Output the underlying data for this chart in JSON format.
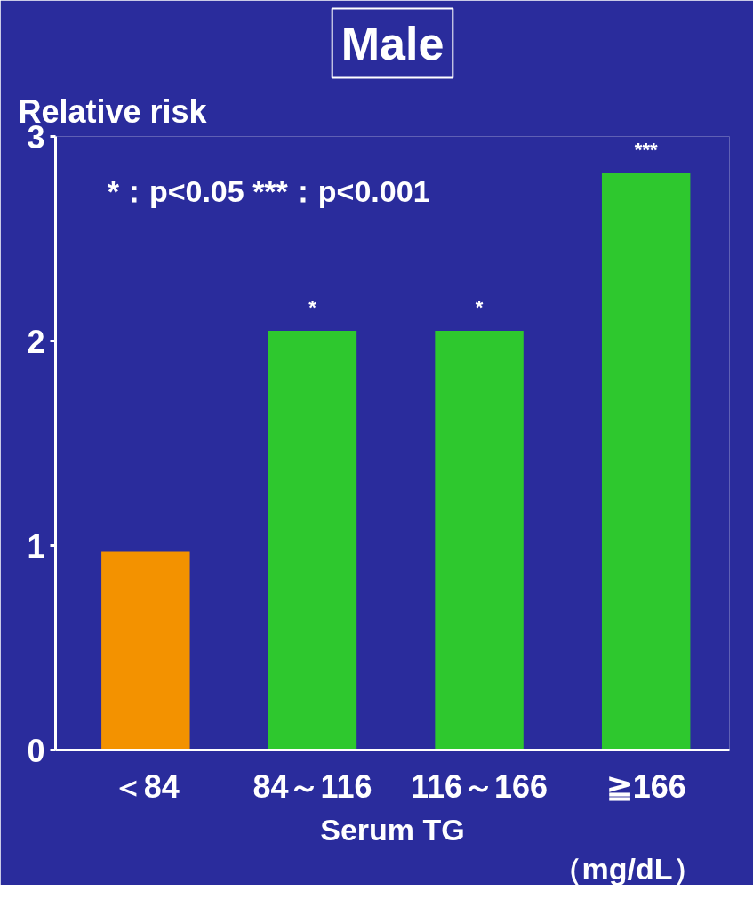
{
  "chart_data": {
    "type": "bar",
    "title": "Male",
    "ylabel": "Relative risk",
    "xlabel": "Serum TG",
    "categories": [
      "＜84",
      "84～116",
      "116～166",
      "≧166"
    ],
    "values": [
      0.97,
      2.05,
      2.05,
      2.82
    ],
    "colors": [
      "#f39200",
      "#2ec82e",
      "#2ec82e",
      "#2ec82e"
    ],
    "ylim": [
      0,
      3
    ],
    "yticks": [
      0,
      1,
      2,
      3
    ],
    "grid": false,
    "annotations": [
      "*：p<0.05 ***：p<0.001",
      {
        "text": "*",
        "x": "84～116",
        "y": 2.05
      },
      {
        "text": "*",
        "x": "116～166",
        "y": 2.05
      },
      {
        "text": "***",
        "x": "≧166",
        "y": 2.82
      },
      "（mg/dL）"
    ]
  }
}
